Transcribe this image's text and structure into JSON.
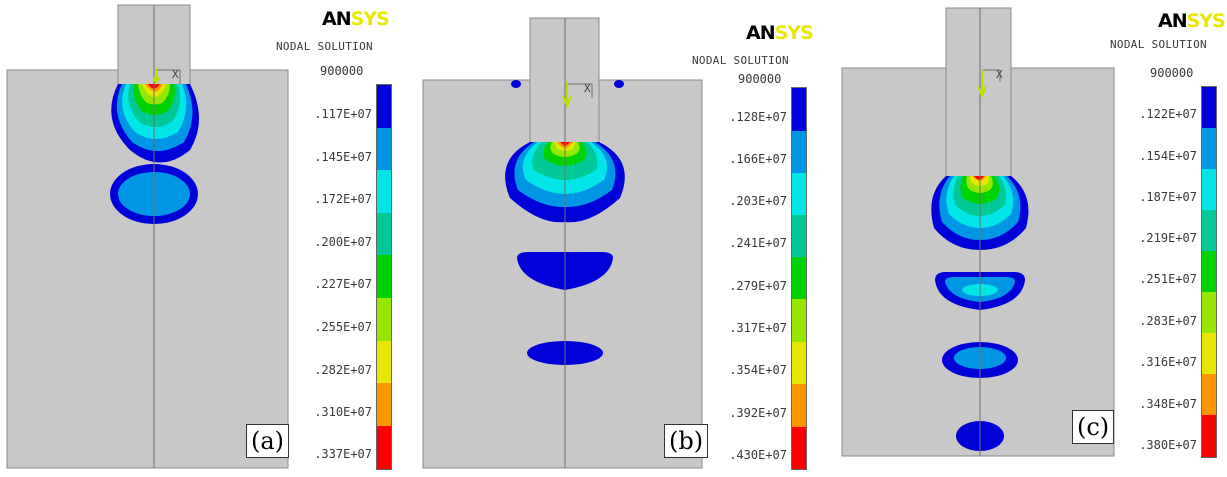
{
  "brand": {
    "logo_dark": "AN",
    "logo_light": "SYS",
    "subtitle": "NODAL SOLUTION"
  },
  "colors": {
    "background": "#ffffff",
    "model": "#c8c8c8",
    "legend": [
      "#0000d8",
      "#0096e6",
      "#00e6e6",
      "#00c896",
      "#00d200",
      "#96e600",
      "#e6e600",
      "#ff9600",
      "#ff0000"
    ]
  },
  "panels": [
    {
      "label": "(a)",
      "axis_label": "X",
      "min_value": "900000",
      "scale_labels": [
        ".117E+07",
        ".145E+07",
        ".172E+07",
        ".200E+07",
        ".227E+07",
        ".255E+07",
        ".282E+07",
        ".310E+07",
        ".337E+07"
      ]
    },
    {
      "label": "(b)",
      "axis_label": "X",
      "min_value": "900000",
      "scale_labels": [
        ".128E+07",
        ".166E+07",
        ".203E+07",
        ".241E+07",
        ".279E+07",
        ".317E+07",
        ".354E+07",
        ".392E+07",
        ".430E+07"
      ]
    },
    {
      "label": "(c)",
      "axis_label": "X",
      "min_value": "900000",
      "scale_labels": [
        ".122E+07",
        ".154E+07",
        ".187E+07",
        ".219E+07",
        ".251E+07",
        ".283E+07",
        ".316E+07",
        ".348E+07",
        ".380E+07"
      ]
    }
  ]
}
